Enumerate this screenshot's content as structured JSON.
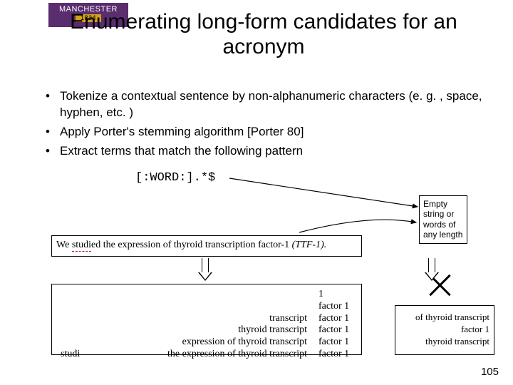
{
  "logo": {
    "name": "MANCHESTER",
    "year": "1824",
    "vertical": "The University of Manchester"
  },
  "title": "Enumerating long-form candidates for an acronym",
  "bullets": [
    "Tokenize a contextual sentence by non-alphanumeric characters (e. g. , space, hyphen, etc. )",
    "Apply Porter's stemming algorithm [Porter 80]",
    "Extract terms that match the following pattern"
  ],
  "pattern": "[:WORD:].*$",
  "sentence": {
    "prefix": "We ",
    "w_studied": "studi",
    "w_ed": "ed",
    "mid1": " the expression of thyroid transcription factor-1 ",
    "ital": "(TTF-1).",
    "dash_color": "#9a1b1b"
  },
  "annotation": "Empty string or words of any length",
  "results": {
    "rows": [
      {
        "left": "",
        "mid": "",
        "right": "1"
      },
      {
        "left": "",
        "mid": "",
        "right": "factor 1"
      },
      {
        "left": "",
        "mid": "transcript",
        "right": "factor 1"
      },
      {
        "left": "",
        "mid": "thyroid transcript",
        "right": "factor 1"
      },
      {
        "left": "",
        "mid": "expression of thyroid transcript",
        "right": "factor 1"
      },
      {
        "left": "studi",
        "mid": "the expression of thyroid transcript",
        "right": "factor 1"
      }
    ]
  },
  "reject": {
    "line1": "of thyroid transcript factor 1",
    "line2": "thyroid transcript"
  },
  "pagenum": "105",
  "colors": {
    "purple": "#5a2d6e",
    "gold": "#d4a017",
    "dash": "#9a1b1b"
  }
}
